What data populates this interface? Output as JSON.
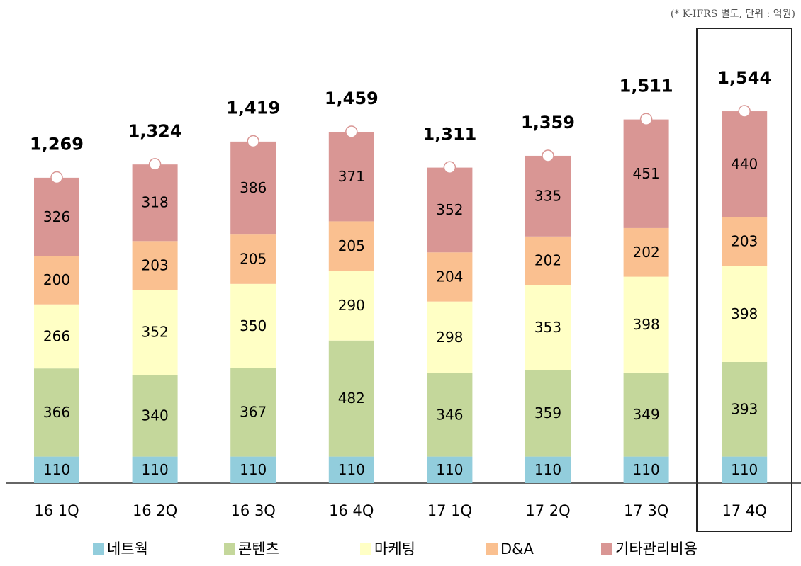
{
  "chart_data": {
    "type": "stacked_bar",
    "note": "(* K-IFRS 별도, 단위 : 억원)",
    "categories": [
      "16 1Q",
      "16 2Q",
      "16 3Q",
      "16 4Q",
      "17 1Q",
      "17 2Q",
      "17 3Q",
      "17 4Q"
    ],
    "series": [
      {
        "name": "네트웍",
        "color": "#92cddc",
        "values": [
          110,
          110,
          110,
          110,
          110,
          110,
          110,
          110
        ]
      },
      {
        "name": "콘텐츠",
        "color": "#c4d79b",
        "values": [
          366,
          340,
          367,
          482,
          346,
          359,
          349,
          393
        ]
      },
      {
        "name": "마케팅",
        "color": "#ffffc5",
        "values": [
          266,
          352,
          350,
          290,
          298,
          353,
          398,
          398
        ]
      },
      {
        "name": "D&A",
        "color": "#fac090",
        "values": [
          200,
          203,
          205,
          205,
          204,
          202,
          202,
          203
        ]
      },
      {
        "name": "기타관리비용",
        "color": "#d99694",
        "values": [
          326,
          318,
          386,
          371,
          352,
          335,
          451,
          440
        ]
      }
    ],
    "totals": [
      1269,
      1324,
      1419,
      1459,
      1311,
      1359,
      1511,
      1544
    ],
    "total_labels": [
      "1,269",
      "1,324",
      "1,419",
      "1,459",
      "1,311",
      "1,359",
      "1,511",
      "1,544"
    ]
  }
}
